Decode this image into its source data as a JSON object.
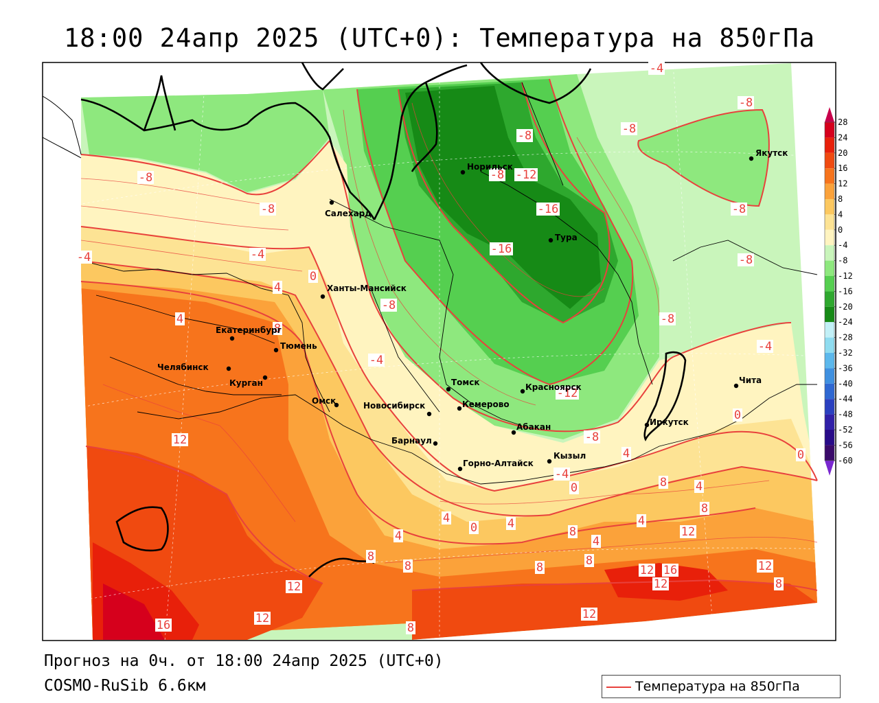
{
  "title": "18:00 24апр 2025 (UTC+0): Температура на 850гПа",
  "footer": {
    "forecast": "Прогноз на 0ч. от 18:00 24апр 2025 (UTC+0)",
    "model": "COSMO-RuSib 6.6км"
  },
  "legend": {
    "label": "Температура на 850гПа",
    "line_color": "#e8413c"
  },
  "colorbar": {
    "ticks": [
      "28",
      "24",
      "20",
      "16",
      "12",
      "8",
      "4",
      "0",
      "-4",
      "-8",
      "-12",
      "-16",
      "-20",
      "-24",
      "-28",
      "-32",
      "-36",
      "-40",
      "-44",
      "-48",
      "-52",
      "-56",
      "-60"
    ],
    "colors": [
      "#c8004b",
      "#d6001c",
      "#e8200a",
      "#f04a10",
      "#f7741c",
      "#fba23a",
      "#fcc860",
      "#fde394",
      "#fff4c0",
      "#c9f5bb",
      "#8ee87e",
      "#55cf50",
      "#2ea82e",
      "#168a16",
      "#c2f0f7",
      "#8fdcf0",
      "#5cb8ec",
      "#3f90e0",
      "#2f68d2",
      "#2a40c0",
      "#3020a8",
      "#280b88",
      "#3a0a6a",
      "#7a28d0"
    ]
  },
  "cities": [
    {
      "name": "Норильск"
    },
    {
      "name": "Салехард"
    },
    {
      "name": "Тура"
    },
    {
      "name": "Якутск"
    },
    {
      "name": "Ханты-Мансийск"
    },
    {
      "name": "Екатеринбург"
    },
    {
      "name": "Тюмень"
    },
    {
      "name": "Челябинск"
    },
    {
      "name": "Курган"
    },
    {
      "name": "Омск"
    },
    {
      "name": "Новосибирск"
    },
    {
      "name": "Томск"
    },
    {
      "name": "Кемерово"
    },
    {
      "name": "Красноярск"
    },
    {
      "name": "Барнаул"
    },
    {
      "name": "Абакан"
    },
    {
      "name": "Горно-Алтайск"
    },
    {
      "name": "Кызыл"
    },
    {
      "name": "Иркутск"
    },
    {
      "name": "Чита"
    }
  ],
  "contour_labels": [
    {
      "text": "-4"
    },
    {
      "text": "-8"
    },
    {
      "text": "-8"
    },
    {
      "text": "-8"
    },
    {
      "text": "-8"
    },
    {
      "text": "-8"
    },
    {
      "text": "-12"
    },
    {
      "text": "-16"
    },
    {
      "text": "-16"
    },
    {
      "text": "-8"
    },
    {
      "text": "-8"
    },
    {
      "text": "-4"
    },
    {
      "text": "0"
    },
    {
      "text": "4"
    },
    {
      "text": "-4"
    },
    {
      "text": "-8"
    },
    {
      "text": "-4"
    },
    {
      "text": "8"
    },
    {
      "text": "-12"
    },
    {
      "text": "-8"
    },
    {
      "text": "-4"
    },
    {
      "text": "0"
    },
    {
      "text": "-4"
    },
    {
      "text": "4"
    },
    {
      "text": "0"
    },
    {
      "text": "0"
    },
    {
      "text": "12"
    },
    {
      "text": "-8"
    },
    {
      "text": "4"
    },
    {
      "text": "8"
    },
    {
      "text": "4"
    },
    {
      "text": "8"
    },
    {
      "text": "4"
    },
    {
      "text": "0"
    },
    {
      "text": "4"
    },
    {
      "text": "8"
    },
    {
      "text": "4"
    },
    {
      "text": "4"
    },
    {
      "text": "12"
    },
    {
      "text": "4"
    },
    {
      "text": "8"
    },
    {
      "text": "8"
    },
    {
      "text": "8"
    },
    {
      "text": "8"
    },
    {
      "text": "12"
    },
    {
      "text": "16"
    },
    {
      "text": "12"
    },
    {
      "text": "12"
    },
    {
      "text": "8"
    },
    {
      "text": "12"
    },
    {
      "text": "16"
    },
    {
      "text": "12"
    },
    {
      "text": "8"
    },
    {
      "text": "12"
    },
    {
      "text": "-8"
    }
  ]
}
